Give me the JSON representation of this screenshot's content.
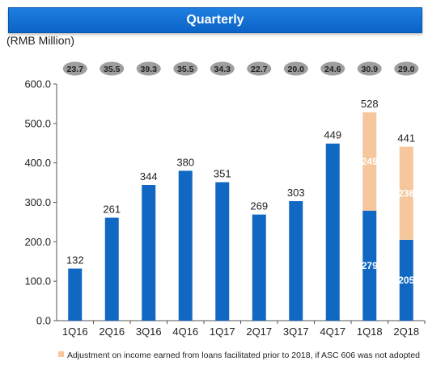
{
  "header": {
    "title": "Quarterly"
  },
  "unit_label": "(RMB Million)",
  "legend": {
    "text": "Adjustment on income earned from loans facilitated prior to 2018, if ASC 606 was not adopted"
  },
  "colors": {
    "bar": "#1068c2",
    "adjustment": "#f6c79c",
    "banner": "#1273d6",
    "bubble": "#9e9e9e"
  },
  "chart_data": {
    "type": "bar",
    "stacked": true,
    "categories": [
      "1Q16",
      "2Q16",
      "3Q16",
      "4Q16",
      "1Q17",
      "2Q17",
      "3Q17",
      "4Q17",
      "1Q18",
      "2Q18"
    ],
    "ylim": [
      0,
      600
    ],
    "yticks": [
      "0.0",
      "100.0",
      "200.0",
      "300.0",
      "400.0",
      "500.0",
      "600.0"
    ],
    "series": [
      {
        "values": [
          132,
          261,
          344,
          380,
          351,
          269,
          303,
          449,
          279,
          205
        ]
      },
      {
        "name": "Adjustment on income earned from loans facilitated prior to 2018, if ASC 606 was not adopted",
        "values": [
          0,
          0,
          0,
          0,
          0,
          0,
          0,
          0,
          249,
          236
        ]
      }
    ],
    "totals": [
      132,
      261,
      344,
      380,
      351,
      269,
      303,
      449,
      528,
      441
    ],
    "bubble_values": [
      "23.7",
      "35.5",
      "39.3",
      "35.5",
      "34.3",
      "22.7",
      "20.0",
      "24.6",
      "30.9",
      "29.0"
    ]
  }
}
